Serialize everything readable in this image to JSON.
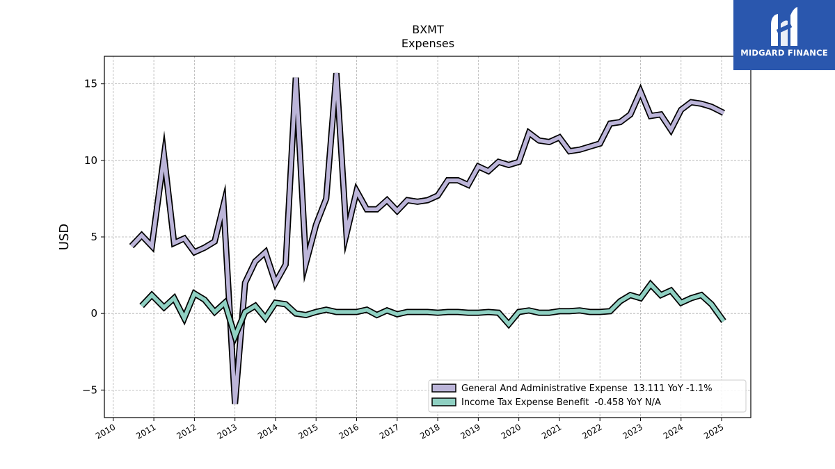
{
  "chart_data": {
    "type": "line",
    "title": "BXMT",
    "subtitle": "Expenses",
    "xlabel": "",
    "ylabel": "USD",
    "x_ticks": [
      "2010",
      "2011",
      "2012",
      "2013",
      "2014",
      "2015",
      "2016",
      "2017",
      "2018",
      "2019",
      "2020",
      "2021",
      "2022",
      "2023",
      "2024",
      "2025"
    ],
    "y_ticks": [
      -5,
      0,
      5,
      10,
      15
    ],
    "xlim": [
      2009.78,
      2025.72
    ],
    "ylim": [
      -6.8,
      16.8
    ],
    "grid": true,
    "legend_position": "lower-right",
    "series": [
      {
        "name": "General And Administrative Expense  13.111 YoY -1.1%",
        "color": "#bcb5d9",
        "values": [
          [
            2010.45,
            4.4
          ],
          [
            2010.7,
            5.1
          ],
          [
            2010.95,
            4.4
          ],
          [
            2011.25,
            10.3
          ],
          [
            2011.5,
            4.6
          ],
          [
            2011.75,
            4.9
          ],
          [
            2012.0,
            4.0
          ],
          [
            2012.25,
            4.3
          ],
          [
            2012.5,
            4.7
          ],
          [
            2012.72,
            7.1
          ],
          [
            2013.0,
            -5.9
          ],
          [
            2013.25,
            2.0
          ],
          [
            2013.5,
            3.4
          ],
          [
            2013.75,
            4.0
          ],
          [
            2014.0,
            2.0
          ],
          [
            2014.25,
            3.2
          ],
          [
            2014.5,
            15.4
          ],
          [
            2014.75,
            3.3
          ],
          [
            2015.0,
            5.8
          ],
          [
            2015.25,
            7.5
          ],
          [
            2015.5,
            15.7
          ],
          [
            2015.75,
            5.2
          ],
          [
            2016.0,
            8.0
          ],
          [
            2016.25,
            6.8
          ],
          [
            2016.5,
            6.8
          ],
          [
            2016.75,
            7.4
          ],
          [
            2017.0,
            6.7
          ],
          [
            2017.25,
            7.4
          ],
          [
            2017.5,
            7.3
          ],
          [
            2017.75,
            7.4
          ],
          [
            2018.0,
            7.7
          ],
          [
            2018.25,
            8.7
          ],
          [
            2018.5,
            8.7
          ],
          [
            2018.75,
            8.4
          ],
          [
            2019.0,
            9.6
          ],
          [
            2019.25,
            9.3
          ],
          [
            2019.5,
            9.9
          ],
          [
            2019.75,
            9.7
          ],
          [
            2020.0,
            9.9
          ],
          [
            2020.25,
            11.8
          ],
          [
            2020.5,
            11.3
          ],
          [
            2020.75,
            11.2
          ],
          [
            2021.0,
            11.5
          ],
          [
            2021.25,
            10.6
          ],
          [
            2021.5,
            10.7
          ],
          [
            2021.75,
            10.9
          ],
          [
            2022.0,
            11.1
          ],
          [
            2022.25,
            12.4
          ],
          [
            2022.5,
            12.5
          ],
          [
            2022.75,
            13.0
          ],
          [
            2023.0,
            14.5
          ],
          [
            2023.25,
            12.9
          ],
          [
            2023.5,
            13.0
          ],
          [
            2023.75,
            12.0
          ],
          [
            2024.0,
            13.3
          ],
          [
            2024.25,
            13.8
          ],
          [
            2024.5,
            13.7
          ],
          [
            2024.75,
            13.5
          ],
          [
            2025.05,
            13.1
          ]
        ]
      },
      {
        "name": "Income Tax Expense Benefit  -0.458 YoY N/A",
        "color": "#8fd0c2",
        "values": [
          [
            2010.7,
            0.5
          ],
          [
            2010.95,
            1.2
          ],
          [
            2011.25,
            0.4
          ],
          [
            2011.5,
            1.0
          ],
          [
            2011.75,
            -0.3
          ],
          [
            2012.0,
            1.3
          ],
          [
            2012.25,
            0.9
          ],
          [
            2012.5,
            0.1
          ],
          [
            2012.75,
            0.7
          ],
          [
            2013.0,
            -1.5
          ],
          [
            2013.25,
            0.1
          ],
          [
            2013.5,
            0.5
          ],
          [
            2013.75,
            -0.3
          ],
          [
            2014.0,
            0.7
          ],
          [
            2014.25,
            0.6
          ],
          [
            2014.5,
            0.0
          ],
          [
            2014.75,
            -0.1
          ],
          [
            2015.0,
            0.1
          ],
          [
            2015.25,
            0.25
          ],
          [
            2015.5,
            0.1
          ],
          [
            2015.75,
            0.1
          ],
          [
            2016.0,
            0.1
          ],
          [
            2016.25,
            0.25
          ],
          [
            2016.5,
            -0.1
          ],
          [
            2016.75,
            0.2
          ],
          [
            2017.0,
            -0.05
          ],
          [
            2017.25,
            0.1
          ],
          [
            2017.5,
            0.1
          ],
          [
            2017.75,
            0.1
          ],
          [
            2018.0,
            0.05
          ],
          [
            2018.25,
            0.1
          ],
          [
            2018.5,
            0.1
          ],
          [
            2018.75,
            0.05
          ],
          [
            2019.0,
            0.05
          ],
          [
            2019.25,
            0.1
          ],
          [
            2019.5,
            0.05
          ],
          [
            2019.75,
            -0.7
          ],
          [
            2020.0,
            0.1
          ],
          [
            2020.25,
            0.2
          ],
          [
            2020.5,
            0.05
          ],
          [
            2020.75,
            0.05
          ],
          [
            2021.0,
            0.15
          ],
          [
            2021.25,
            0.15
          ],
          [
            2021.5,
            0.2
          ],
          [
            2021.75,
            0.1
          ],
          [
            2022.0,
            0.1
          ],
          [
            2022.25,
            0.15
          ],
          [
            2022.5,
            0.8
          ],
          [
            2022.75,
            1.2
          ],
          [
            2023.0,
            1.0
          ],
          [
            2023.25,
            1.9
          ],
          [
            2023.5,
            1.2
          ],
          [
            2023.75,
            1.5
          ],
          [
            2024.0,
            0.7
          ],
          [
            2024.25,
            1.0
          ],
          [
            2024.5,
            1.2
          ],
          [
            2024.75,
            0.6
          ],
          [
            2025.05,
            -0.5
          ]
        ]
      }
    ]
  },
  "logo": {
    "text": "MIDGARD FINANCE",
    "background": "#2a57ae"
  }
}
